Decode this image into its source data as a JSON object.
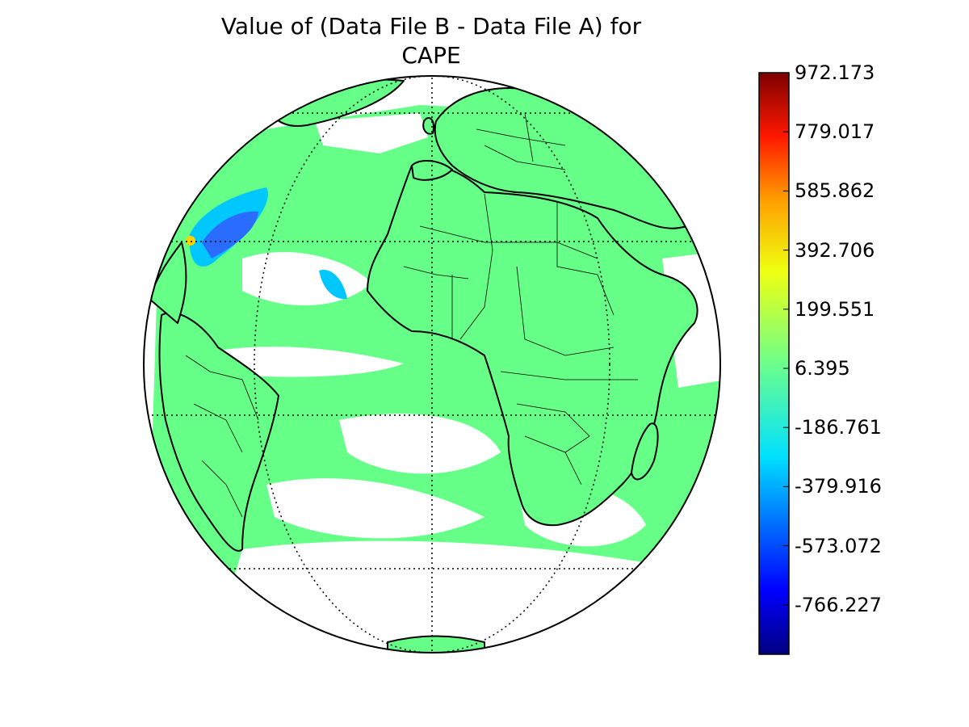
{
  "title": {
    "line1": "Value of (Data File B - Data File A) for",
    "line2": "CAPE"
  },
  "colorbar": {
    "ticks": [
      "972.173",
      "779.017",
      "585.862",
      "392.706",
      "199.551",
      "6.395",
      "-186.761",
      "-379.916",
      "-573.072",
      "-766.227"
    ],
    "colormap": "jet",
    "colors": [
      "#00007f",
      "#0000ff",
      "#007fff",
      "#00ffff",
      "#7fff7f",
      "#ffff00",
      "#ff7f00",
      "#ff0000",
      "#7f0000"
    ]
  },
  "map": {
    "projection": "orthographic",
    "field_color": "#66ff88",
    "negative_anomaly_color": "#2a6cff",
    "coastline_color": "#000000",
    "graticule": "dotted"
  }
}
